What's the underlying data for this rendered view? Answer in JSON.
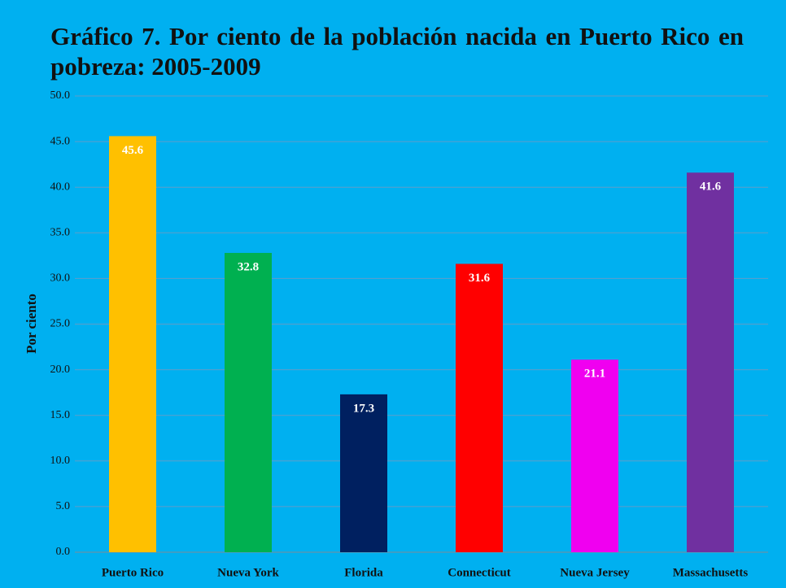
{
  "chart_data": {
    "type": "bar",
    "title": "Gráfico 7. Por ciento de la población nacida en Puerto Rico en pobreza:  2005-2009",
    "y_label": "Por ciento",
    "categories": [
      "Puerto Rico",
      "Nueva York",
      "Florida",
      "Connecticut",
      "Nueva Jersey",
      "Massachusetts"
    ],
    "values": [
      45.6,
      32.8,
      17.3,
      31.6,
      21.1,
      41.6
    ],
    "colors": [
      "#ffc000",
      "#00b050",
      "#002060",
      "#ff0000",
      "#f000f0",
      "#7030a0"
    ],
    "ylim": [
      0,
      50
    ],
    "yticks": [
      {
        "value": 0,
        "label": "0.0"
      },
      {
        "value": 5,
        "label": "5.0"
      },
      {
        "value": 10,
        "label": "10.0"
      },
      {
        "value": 15,
        "label": "15.0"
      },
      {
        "value": 20,
        "label": "20.0"
      },
      {
        "value": 25,
        "label": "25.0"
      },
      {
        "value": 30,
        "label": "30.0"
      },
      {
        "value": 35,
        "label": "35.0"
      },
      {
        "value": 40,
        "label": "40.0"
      },
      {
        "value": 45,
        "label": "45.0"
      },
      {
        "value": 50,
        "label": "50.0"
      }
    ],
    "grid": true
  }
}
